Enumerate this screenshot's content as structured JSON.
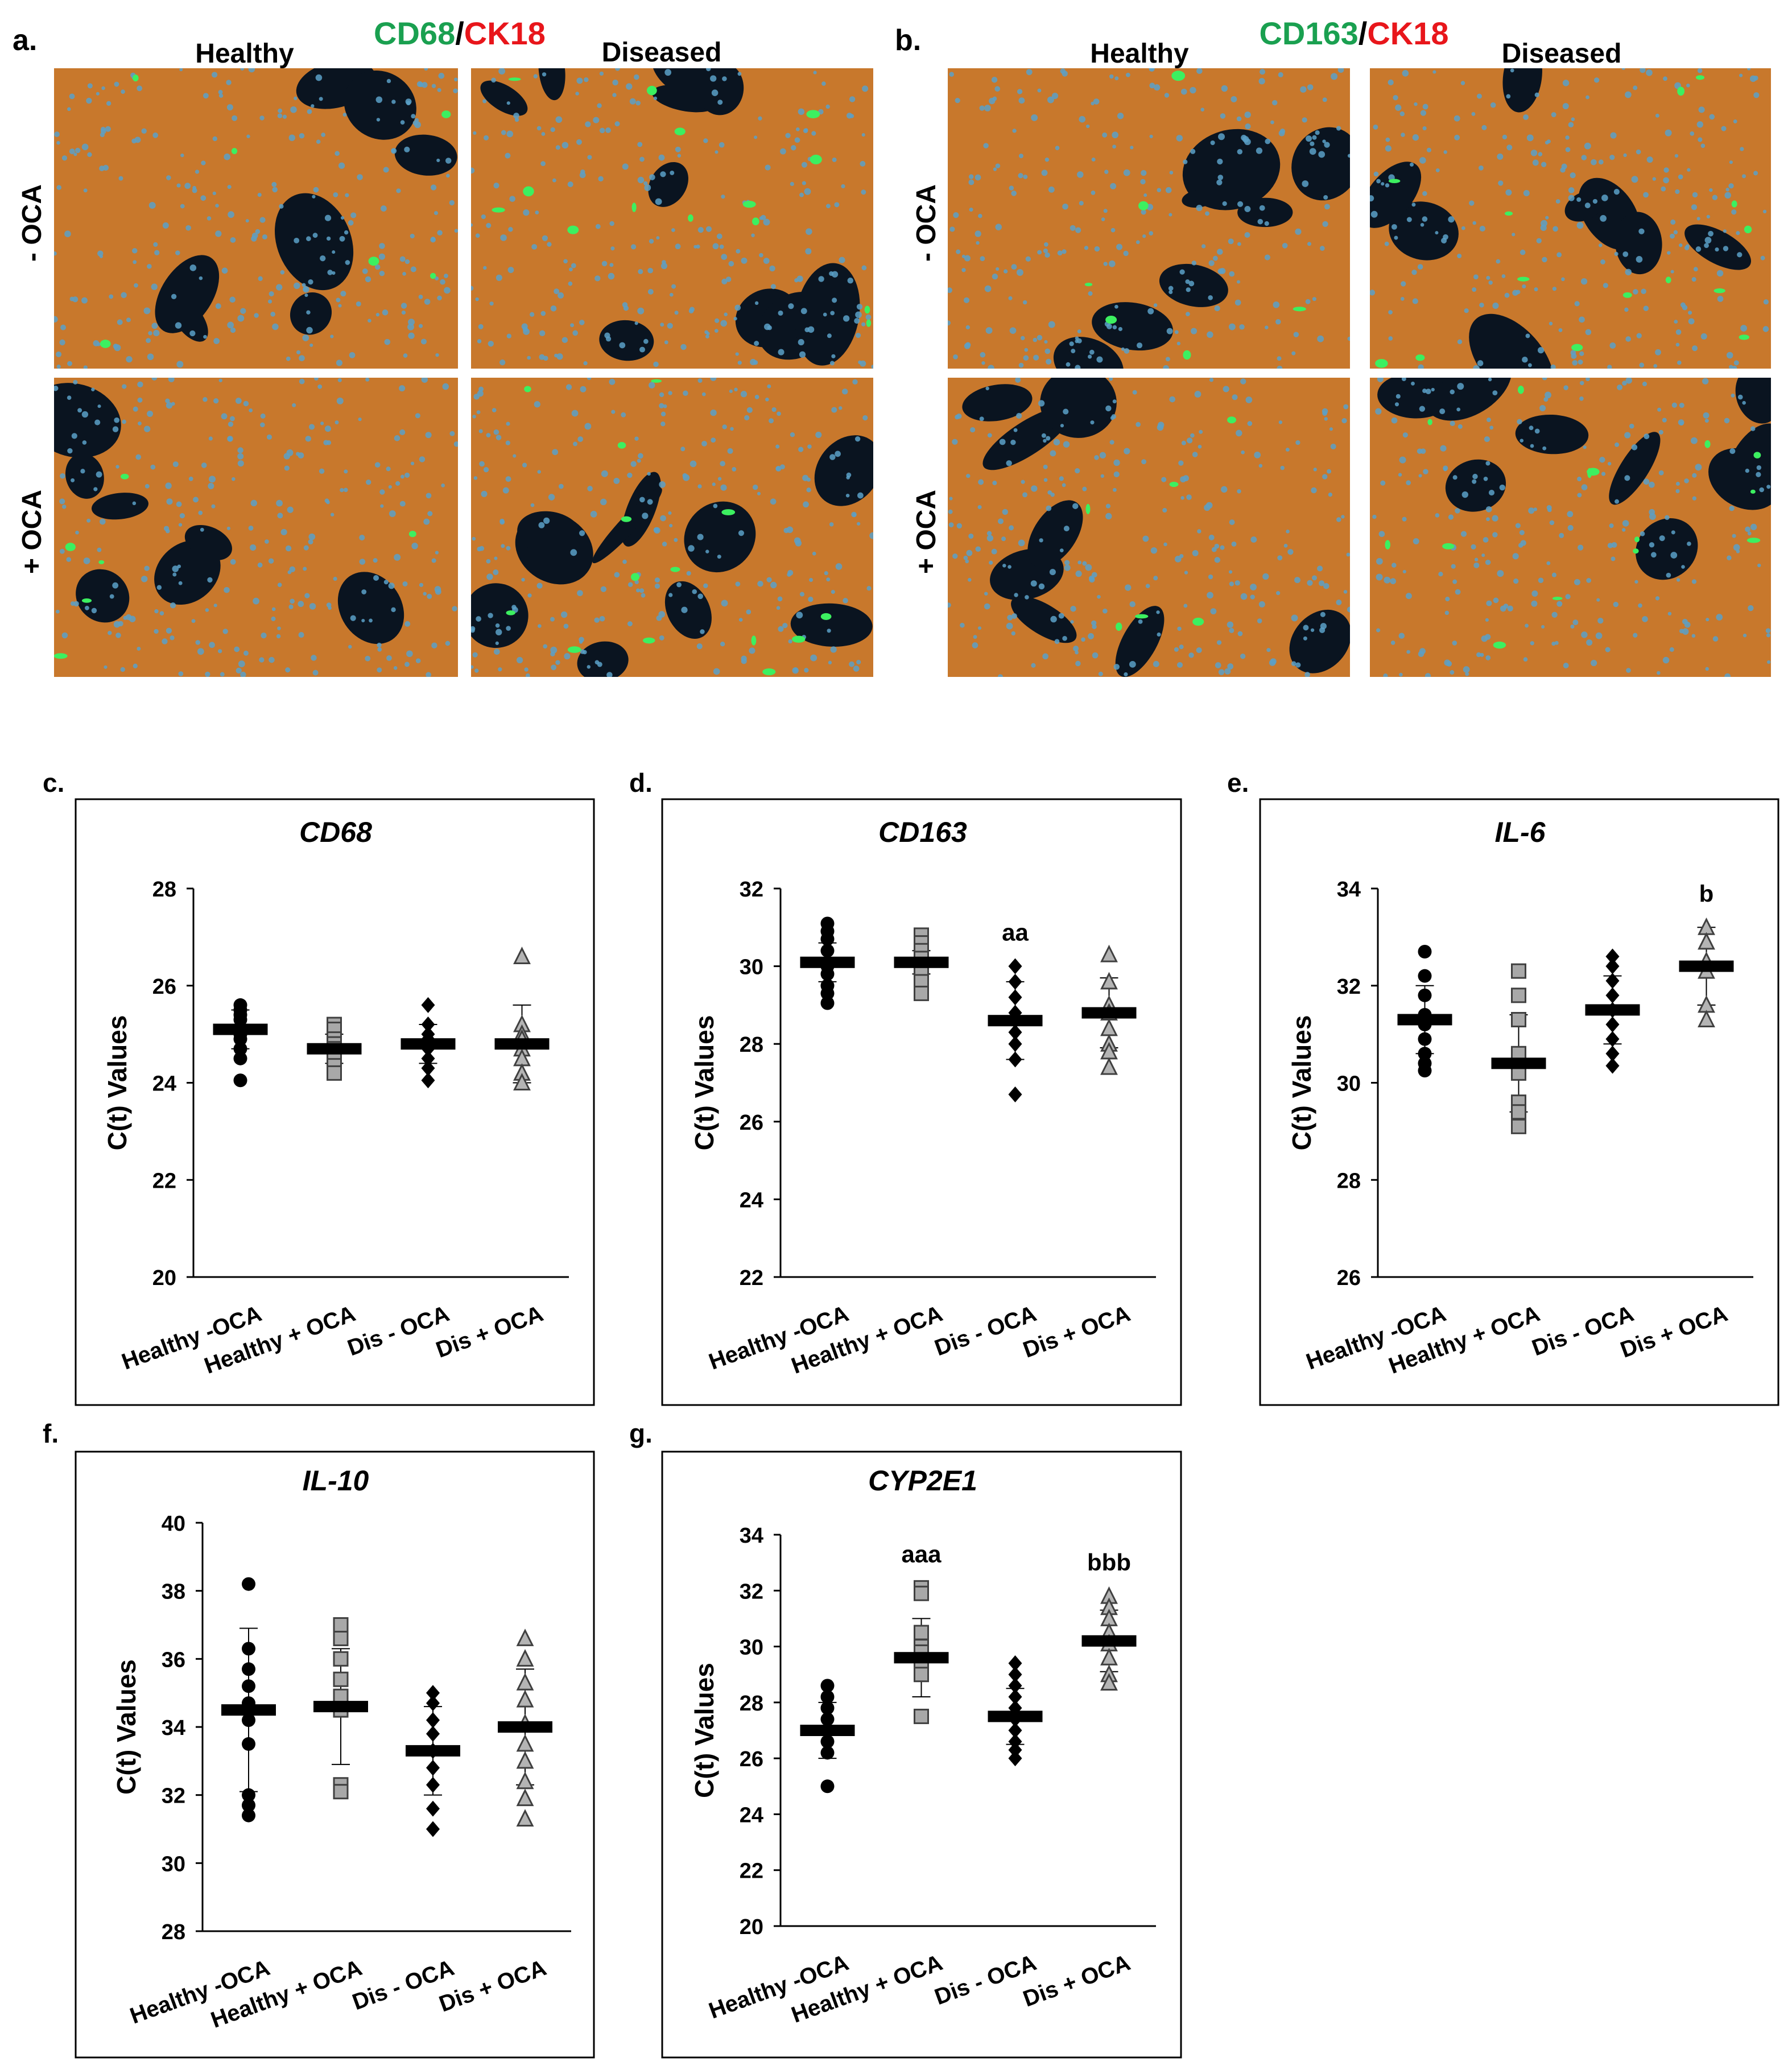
{
  "panels_top": {
    "a": {
      "label": "a.",
      "stain_green": "CD68",
      "stain_sep": "/",
      "stain_red": "CK18",
      "col_healthy": "Healthy",
      "col_diseased": "Diseased",
      "row_minus": "- OCA",
      "row_plus": "+ OCA"
    },
    "b": {
      "label": "b.",
      "stain_green": "CD163",
      "stain_sep": "/",
      "stain_red": "CK18",
      "col_healthy": "Healthy",
      "col_diseased": "Diseased",
      "row_minus": "- OCA",
      "row_plus": "+ OCA"
    }
  },
  "colors": {
    "green_label": "#1aa050",
    "red_label": "#e8161b",
    "tissue": "#c8782c",
    "nuclei": "#5aa0c8",
    "void": "#0a1420",
    "macrophage": "#3cf060"
  },
  "chart_data": [
    {
      "panel": "c.",
      "type": "scatter",
      "title": "CD68",
      "ylabel": "C(t) Values",
      "ylim": [
        20,
        28
      ],
      "yticks": [
        20,
        22,
        24,
        26,
        28
      ],
      "categories": [
        "Healthy -OCA",
        "Healthy + OCA",
        "Dis - OCA",
        "Dis + OCA"
      ],
      "markers": [
        "circle",
        "square",
        "diamond",
        "triangle"
      ],
      "means": [
        25.1,
        24.7,
        24.8,
        24.8
      ],
      "sd": [
        0.4,
        0.3,
        0.4,
        0.8
      ],
      "points": [
        [
          25.6,
          25.5,
          25.4,
          25.3,
          25.1,
          25.0,
          24.9,
          24.7,
          24.5,
          24.05
        ],
        [
          25.2,
          25.1,
          24.9,
          24.8,
          24.7,
          24.6,
          24.5,
          24.35,
          24.2
        ],
        [
          25.6,
          25.2,
          25.0,
          24.9,
          24.8,
          24.7,
          24.5,
          24.3,
          24.05
        ],
        [
          26.6,
          25.2,
          25.0,
          24.9,
          24.7,
          24.5,
          24.2,
          24.0
        ]
      ],
      "annotations": [
        "",
        "",
        "",
        ""
      ]
    },
    {
      "panel": "d.",
      "type": "scatter",
      "title": "CD163",
      "ylabel": "C(t) Values",
      "ylim": [
        22,
        32
      ],
      "yticks": [
        22,
        24,
        26,
        28,
        30,
        32
      ],
      "categories": [
        "Healthy -OCA",
        "Healthy + OCA",
        "Dis - OCA",
        "Dis + OCA"
      ],
      "markers": [
        "circle",
        "square",
        "diamond",
        "triangle"
      ],
      "means": [
        30.1,
        30.1,
        28.6,
        28.8
      ],
      "sd": [
        0.5,
        0.3,
        1.0,
        0.9
      ],
      "points": [
        [
          31.1,
          30.9,
          30.7,
          30.4,
          30.0,
          29.8,
          29.5,
          29.3,
          29.05
        ],
        [
          30.8,
          30.6,
          30.4,
          30.2,
          30.0,
          29.8,
          29.6,
          29.3
        ],
        [
          30.0,
          29.6,
          29.2,
          28.8,
          28.6,
          28.3,
          28.0,
          27.6,
          26.7
        ],
        [
          30.3,
          29.6,
          29.0,
          28.8,
          28.4,
          28.0,
          27.8,
          27.4
        ]
      ],
      "annotations": [
        "",
        "",
        "aa",
        ""
      ]
    },
    {
      "panel": "e.",
      "type": "scatter",
      "title": "IL-6",
      "ylabel": "C(t) Values",
      "ylim": [
        26,
        34
      ],
      "yticks": [
        26,
        28,
        30,
        32,
        34
      ],
      "categories": [
        "Healthy -OCA",
        "Healthy + OCA",
        "Dis - OCA",
        "Dis + OCA"
      ],
      "markers": [
        "circle",
        "square",
        "diamond",
        "triangle"
      ],
      "means": [
        31.3,
        30.4,
        31.5,
        32.4
      ],
      "sd": [
        0.7,
        1.0,
        0.7,
        0.8
      ],
      "points": [
        [
          32.7,
          32.2,
          31.8,
          31.4,
          31.2,
          30.9,
          30.6,
          30.4,
          30.25
        ],
        [
          32.3,
          31.8,
          31.3,
          30.6,
          30.2,
          29.6,
          29.4,
          29.1
        ],
        [
          32.6,
          32.4,
          32.1,
          31.8,
          31.5,
          31.2,
          30.9,
          30.6,
          30.35
        ],
        [
          33.2,
          32.9,
          32.5,
          32.3,
          31.6,
          31.3
        ]
      ],
      "annotations": [
        "",
        "",
        "",
        "b"
      ]
    },
    {
      "panel": "f.",
      "type": "scatter",
      "title": "IL-10",
      "ylabel": "C(t) Values",
      "ylim": [
        28,
        40
      ],
      "yticks": [
        28,
        30,
        32,
        34,
        36,
        38,
        40
      ],
      "categories": [
        "Healthy -OCA",
        "Healthy + OCA",
        "Dis - OCA",
        "Dis + OCA"
      ],
      "markers": [
        "circle",
        "square",
        "diamond",
        "triangle"
      ],
      "means": [
        34.5,
        34.6,
        33.3,
        34.0
      ],
      "sd": [
        2.4,
        1.7,
        1.3,
        1.7
      ],
      "points": [
        [
          38.2,
          36.3,
          35.7,
          35.2,
          34.7,
          34.2,
          33.5,
          32.0,
          31.7,
          31.4
        ],
        [
          37.0,
          36.6,
          36.0,
          35.4,
          34.9,
          34.5,
          32.3,
          32.1
        ],
        [
          35.0,
          34.7,
          34.2,
          33.8,
          33.3,
          32.8,
          32.3,
          31.6,
          31.0
        ],
        [
          36.6,
          36.0,
          35.3,
          34.8,
          34.1,
          33.5,
          33.0,
          32.4,
          31.9,
          31.3
        ]
      ],
      "annotations": [
        "",
        "",
        "",
        ""
      ]
    },
    {
      "panel": "g.",
      "type": "scatter",
      "title": "CYP2E1",
      "ylabel": "C(t) Values",
      "ylim": [
        20,
        34
      ],
      "yticks": [
        20,
        22,
        24,
        26,
        28,
        30,
        32,
        34
      ],
      "categories": [
        "Healthy -OCA",
        "Healthy + OCA",
        "Dis - OCA",
        "Dis + OCA"
      ],
      "markers": [
        "circle",
        "square",
        "diamond",
        "triangle"
      ],
      "means": [
        27.0,
        29.6,
        27.5,
        30.2
      ],
      "sd": [
        1.0,
        1.4,
        1.0,
        1.1
      ],
      "points": [
        [
          28.6,
          28.2,
          27.8,
          27.4,
          27.0,
          26.6,
          26.2,
          25.0
        ],
        [
          32.1,
          31.9,
          30.5,
          30.0,
          29.8,
          29.4,
          29.0,
          27.5
        ],
        [
          29.4,
          29.0,
          28.6,
          28.2,
          27.8,
          27.4,
          27.0,
          26.6,
          26.3,
          26.0
        ],
        [
          31.8,
          31.4,
          31.0,
          30.5,
          30.1,
          29.6,
          29.0,
          28.7
        ]
      ],
      "annotations": [
        "",
        "aaa",
        "",
        "bbb"
      ]
    }
  ]
}
